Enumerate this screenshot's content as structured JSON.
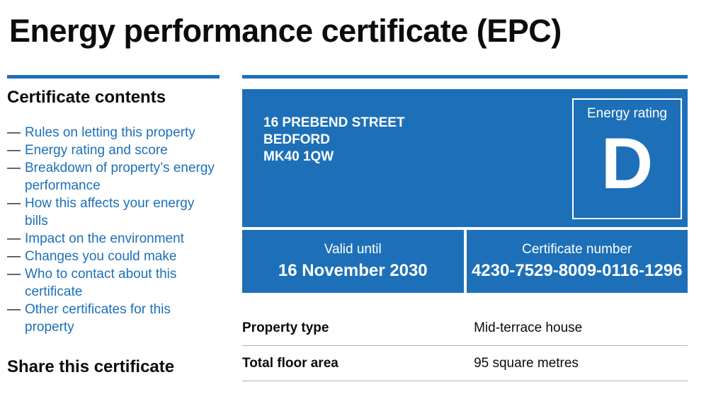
{
  "page": {
    "title": "Energy performance certificate (EPC)"
  },
  "colors": {
    "brand_blue": "#1d70b8",
    "text_black": "#0b0c0c",
    "table_border_grey": "#b1b4b6",
    "panel_text_white": "#ffffff"
  },
  "sidebar": {
    "contents_heading": "Certificate contents",
    "items": [
      {
        "label": "Rules on letting this property"
      },
      {
        "label": "Energy rating and score"
      },
      {
        "label": "Breakdown of property’s energy performance"
      },
      {
        "label": "How this affects your energy bills"
      },
      {
        "label": "Impact on the environment"
      },
      {
        "label": "Changes you could make"
      },
      {
        "label": "Who to contact about this certificate"
      },
      {
        "label": "Other certificates for this property"
      }
    ],
    "share_heading": "Share this certificate"
  },
  "certificate": {
    "address_lines": [
      "16 PREBEND STREET",
      "BEDFORD",
      "MK40 1QW"
    ],
    "energy_rating": {
      "label": "Energy rating",
      "value": "D"
    },
    "valid_until": {
      "label": "Valid until",
      "value": "16 November 2030"
    },
    "certificate_number": {
      "label": "Certificate number",
      "value": "4230-7529-8009-0116-1296"
    }
  },
  "summary": {
    "rows": [
      {
        "label": "Property type",
        "value": "Mid-terrace house"
      },
      {
        "label": "Total floor area",
        "value": "95 square metres"
      }
    ]
  }
}
